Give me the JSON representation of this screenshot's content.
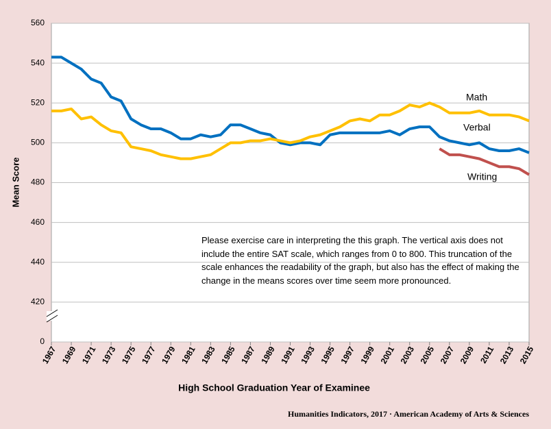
{
  "chart_data": {
    "type": "line",
    "y_axis_label": "Mean Score",
    "x_axis_label": "High School Graduation Year of Examinee",
    "annotation": "Please exercise care in interpreting the this graph. The vertical axis does not include the entire SAT scale, which ranges from 0 to 800.  This truncation of the scale enhances the readability of the graph, but also has the effect of making the change in the means scores over time seem more pronounced.",
    "source": "Humanities Indicators, 2017 · American Academy of Arts & Sciences",
    "x": [
      1967,
      1968,
      1969,
      1970,
      1971,
      1972,
      1973,
      1974,
      1975,
      1976,
      1977,
      1978,
      1979,
      1980,
      1981,
      1982,
      1983,
      1984,
      1985,
      1986,
      1987,
      1988,
      1989,
      1990,
      1991,
      1992,
      1993,
      1994,
      1995,
      1996,
      1997,
      1998,
      1999,
      2000,
      2001,
      2002,
      2003,
      2004,
      2005,
      2006,
      2007,
      2008,
      2009,
      2010,
      2011,
      2012,
      2013,
      2014,
      2015
    ],
    "xlim": [
      1967,
      2015
    ],
    "xticks": [
      1967,
      1969,
      1971,
      1973,
      1975,
      1977,
      1979,
      1981,
      1983,
      1985,
      1987,
      1989,
      1991,
      1993,
      1995,
      1997,
      1999,
      2001,
      2003,
      2005,
      2007,
      2009,
      2011,
      2013,
      2015
    ],
    "ylim": [
      400,
      560
    ],
    "yticks": [
      {
        "value": 400,
        "label": "0"
      },
      420,
      440,
      460,
      480,
      500,
      520,
      540,
      560
    ],
    "grid": true,
    "series": [
      {
        "name": "Verbal",
        "color": "#0070c0",
        "values": [
          543,
          543,
          540,
          537,
          532,
          530,
          523,
          521,
          512,
          509,
          507,
          507,
          505,
          502,
          502,
          504,
          503,
          504,
          509,
          509,
          507,
          505,
          504,
          500,
          499,
          500,
          500,
          499,
          504,
          505,
          505,
          505,
          505,
          505,
          506,
          504,
          507,
          508,
          508,
          503,
          501,
          500,
          499,
          500,
          497,
          496,
          496,
          497,
          495
        ]
      },
      {
        "name": "Math",
        "color": "#ffc000",
        "values": [
          516,
          516,
          517,
          512,
          513,
          509,
          506,
          505,
          498,
          497,
          496,
          494,
          493,
          492,
          492,
          493,
          494,
          497,
          500,
          500,
          501,
          501,
          502,
          501,
          500,
          501,
          503,
          504,
          506,
          508,
          511,
          512,
          511,
          514,
          514,
          516,
          519,
          518,
          520,
          518,
          515,
          515,
          515,
          516,
          514,
          514,
          514,
          513,
          511
        ]
      },
      {
        "name": "Writing",
        "color": "#c0504d",
        "values": [
          null,
          null,
          null,
          null,
          null,
          null,
          null,
          null,
          null,
          null,
          null,
          null,
          null,
          null,
          null,
          null,
          null,
          null,
          null,
          null,
          null,
          null,
          null,
          null,
          null,
          null,
          null,
          null,
          null,
          null,
          null,
          null,
          null,
          null,
          null,
          null,
          null,
          null,
          null,
          497,
          494,
          494,
          493,
          492,
          490,
          488,
          488,
          487,
          484
        ]
      }
    ]
  }
}
